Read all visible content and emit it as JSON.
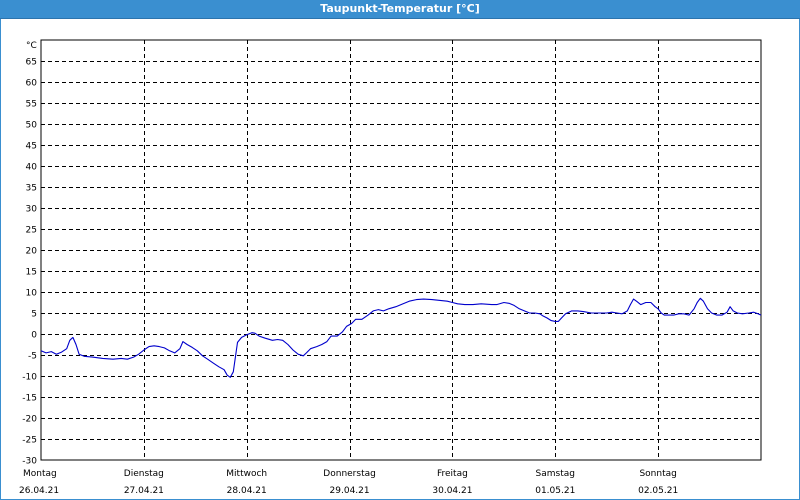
{
  "window": {
    "title": "Taupunkt-Temperatur [°C]"
  },
  "chart_data": {
    "type": "line",
    "title": "Taupunkt-Temperatur [°C]",
    "unit_label": "°C",
    "ylim": [
      -30,
      70
    ],
    "yticks": [
      65,
      60,
      55,
      50,
      45,
      40,
      35,
      30,
      25,
      20,
      15,
      10,
      5,
      0,
      -5,
      -10,
      -15,
      -20,
      -25,
      -30
    ],
    "x_range_days": [
      0,
      7
    ],
    "grid": true,
    "day_labels": [
      {
        "day": "Montag",
        "date": "26.04.21"
      },
      {
        "day": "Dienstag",
        "date": "27.04.21"
      },
      {
        "day": "Mittwoch",
        "date": "28.04.21"
      },
      {
        "day": "Donnerstag",
        "date": "29.04.21"
      },
      {
        "day": "Freitag",
        "date": "30.04.21"
      },
      {
        "day": "Samstag",
        "date": "01.05.21"
      },
      {
        "day": "Sonntag",
        "date": "02.05.21"
      }
    ],
    "series": [
      {
        "color": "#0000cc",
        "points": [
          [
            0.0,
            -4.0
          ],
          [
            0.05,
            -4.5
          ],
          [
            0.1,
            -4.2
          ],
          [
            0.15,
            -4.8
          ],
          [
            0.2,
            -4.3
          ],
          [
            0.25,
            -3.5
          ],
          [
            0.28,
            -1.5
          ],
          [
            0.31,
            -0.8
          ],
          [
            0.34,
            -2.5
          ],
          [
            0.37,
            -4.8
          ],
          [
            0.42,
            -5.3
          ],
          [
            0.5,
            -5.5
          ],
          [
            0.6,
            -5.8
          ],
          [
            0.7,
            -6.0
          ],
          [
            0.78,
            -5.8
          ],
          [
            0.84,
            -6.0
          ],
          [
            0.9,
            -5.5
          ],
          [
            0.95,
            -4.8
          ],
          [
            1.0,
            -3.8
          ],
          [
            1.05,
            -3.0
          ],
          [
            1.1,
            -2.8
          ],
          [
            1.15,
            -3.0
          ],
          [
            1.2,
            -3.3
          ],
          [
            1.25,
            -4.0
          ],
          [
            1.3,
            -4.5
          ],
          [
            1.35,
            -3.5
          ],
          [
            1.38,
            -1.8
          ],
          [
            1.42,
            -2.5
          ],
          [
            1.47,
            -3.2
          ],
          [
            1.52,
            -4.0
          ],
          [
            1.57,
            -5.2
          ],
          [
            1.62,
            -6.0
          ],
          [
            1.68,
            -7.0
          ],
          [
            1.73,
            -7.8
          ],
          [
            1.78,
            -8.5
          ],
          [
            1.81,
            -9.8
          ],
          [
            1.84,
            -10.3
          ],
          [
            1.87,
            -9.0
          ],
          [
            1.89,
            -5.5
          ],
          [
            1.91,
            -2.0
          ],
          [
            1.95,
            -0.8
          ],
          [
            2.0,
            -0.2
          ],
          [
            2.05,
            0.3
          ],
          [
            2.08,
            0.2
          ],
          [
            2.12,
            -0.5
          ],
          [
            2.18,
            -1.0
          ],
          [
            2.25,
            -1.5
          ],
          [
            2.3,
            -1.3
          ],
          [
            2.35,
            -1.5
          ],
          [
            2.4,
            -2.5
          ],
          [
            2.45,
            -3.8
          ],
          [
            2.5,
            -4.8
          ],
          [
            2.55,
            -5.2
          ],
          [
            2.58,
            -4.5
          ],
          [
            2.62,
            -3.5
          ],
          [
            2.68,
            -3.0
          ],
          [
            2.73,
            -2.5
          ],
          [
            2.78,
            -1.8
          ],
          [
            2.82,
            -0.5
          ],
          [
            2.88,
            -0.5
          ],
          [
            2.93,
            0.5
          ],
          [
            2.97,
            1.8
          ],
          [
            3.02,
            2.5
          ],
          [
            3.06,
            3.5
          ],
          [
            3.12,
            3.5
          ],
          [
            3.18,
            4.5
          ],
          [
            3.23,
            5.5
          ],
          [
            3.28,
            5.8
          ],
          [
            3.33,
            5.5
          ],
          [
            3.38,
            6.0
          ],
          [
            3.45,
            6.5
          ],
          [
            3.52,
            7.2
          ],
          [
            3.58,
            7.8
          ],
          [
            3.65,
            8.2
          ],
          [
            3.72,
            8.3
          ],
          [
            3.8,
            8.2
          ],
          [
            3.88,
            8.0
          ],
          [
            3.95,
            7.8
          ],
          [
            4.0,
            7.5
          ],
          [
            4.05,
            7.2
          ],
          [
            4.12,
            7.0
          ],
          [
            4.2,
            7.0
          ],
          [
            4.28,
            7.2
          ],
          [
            4.33,
            7.1
          ],
          [
            4.38,
            7.0
          ],
          [
            4.43,
            7.0
          ],
          [
            4.5,
            7.5
          ],
          [
            4.55,
            7.3
          ],
          [
            4.6,
            6.8
          ],
          [
            4.65,
            6.0
          ],
          [
            4.7,
            5.5
          ],
          [
            4.75,
            5.0
          ],
          [
            4.8,
            5.0
          ],
          [
            4.85,
            4.8
          ],
          [
            4.88,
            4.3
          ],
          [
            4.92,
            3.8
          ],
          [
            4.96,
            3.2
          ],
          [
            5.0,
            3.0
          ],
          [
            5.03,
            3.0
          ],
          [
            5.06,
            3.8
          ],
          [
            5.1,
            4.8
          ],
          [
            5.16,
            5.5
          ],
          [
            5.22,
            5.5
          ],
          [
            5.28,
            5.3
          ],
          [
            5.35,
            5.0
          ],
          [
            5.42,
            5.0
          ],
          [
            5.5,
            5.0
          ],
          [
            5.55,
            5.2
          ],
          [
            5.6,
            5.0
          ],
          [
            5.65,
            4.8
          ],
          [
            5.7,
            5.5
          ],
          [
            5.73,
            7.0
          ],
          [
            5.76,
            8.3
          ],
          [
            5.79,
            7.8
          ],
          [
            5.83,
            7.0
          ],
          [
            5.88,
            7.5
          ],
          [
            5.93,
            7.5
          ],
          [
            5.97,
            6.5
          ],
          [
            6.0,
            6.0
          ],
          [
            6.03,
            5.0
          ],
          [
            6.06,
            4.5
          ],
          [
            6.1,
            4.5
          ],
          [
            6.15,
            4.5
          ],
          [
            6.2,
            4.8
          ],
          [
            6.25,
            4.8
          ],
          [
            6.3,
            4.5
          ],
          [
            6.35,
            6.0
          ],
          [
            6.38,
            7.5
          ],
          [
            6.41,
            8.5
          ],
          [
            6.44,
            7.8
          ],
          [
            6.48,
            6.0
          ],
          [
            6.52,
            5.0
          ],
          [
            6.57,
            4.5
          ],
          [
            6.62,
            4.5
          ],
          [
            6.67,
            5.2
          ],
          [
            6.7,
            6.5
          ],
          [
            6.73,
            5.5
          ],
          [
            6.77,
            5.0
          ],
          [
            6.82,
            4.8
          ],
          [
            6.88,
            5.0
          ],
          [
            6.93,
            5.2
          ],
          [
            6.97,
            4.8
          ],
          [
            7.0,
            4.5
          ]
        ]
      }
    ]
  }
}
